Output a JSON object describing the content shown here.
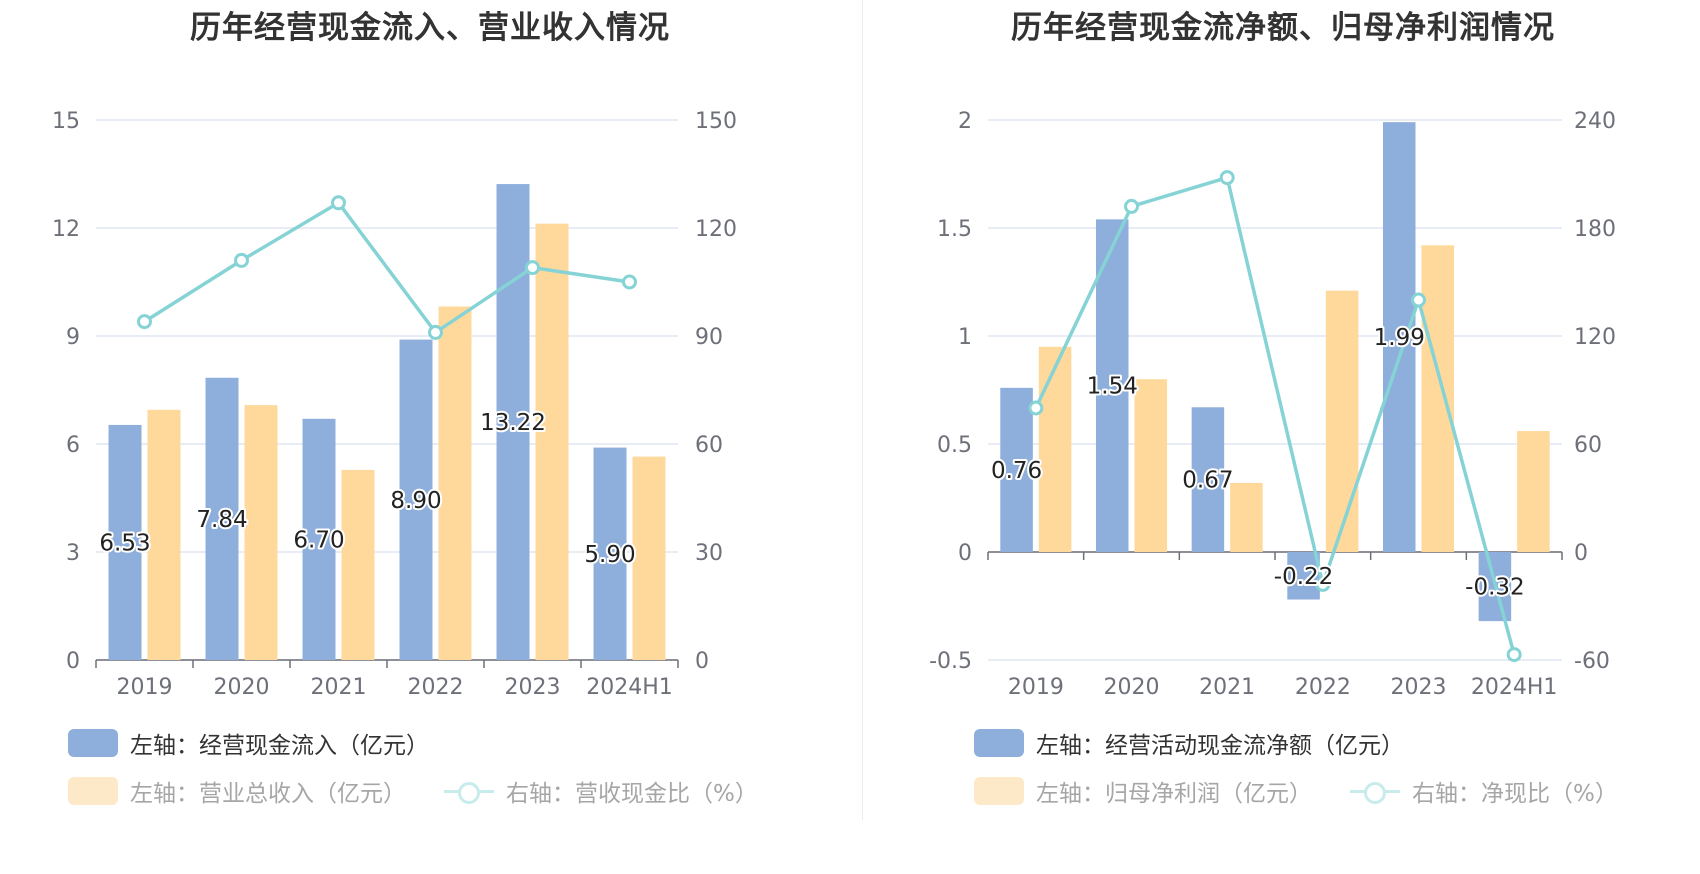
{
  "chart_data": [
    {
      "type": "bar+line",
      "title": "历年经营现金流入、营业收入情况",
      "categories": [
        "2019",
        "2020",
        "2021",
        "2022",
        "2023",
        "2024H1"
      ],
      "left_axis": {
        "min": 0,
        "max": 15,
        "ticks": [
          "0",
          "3",
          "6",
          "9",
          "12",
          "15"
        ]
      },
      "right_axis": {
        "min": 0,
        "max": 150,
        "ticks": [
          "0",
          "30",
          "60",
          "90",
          "120",
          "150"
        ]
      },
      "series": [
        {
          "name": "左轴：经营现金流入（亿元）",
          "kind": "bar",
          "axis": "left",
          "color": "#8eaedb",
          "values": [
            6.53,
            7.84,
            6.7,
            8.9,
            13.22,
            5.9
          ],
          "labels": [
            "6.53",
            "7.84",
            "6.70",
            "8.90",
            "13.22",
            "5.90"
          ]
        },
        {
          "name": "左轴：营业总收入（亿元）",
          "kind": "bar",
          "axis": "left",
          "color": "#fed99b",
          "values": [
            6.95,
            7.08,
            5.28,
            9.82,
            12.12,
            5.65
          ]
        },
        {
          "name": "右轴：营收现金比（%）",
          "kind": "line",
          "axis": "right",
          "color": "#86d3d6",
          "values": [
            94,
            111,
            127,
            91,
            109,
            105
          ]
        }
      ],
      "grid": true,
      "legend_position": "bottom"
    },
    {
      "type": "bar+line",
      "title": "历年经营现金流净额、归母净利润情况",
      "categories": [
        "2019",
        "2020",
        "2021",
        "2022",
        "2023",
        "2024H1"
      ],
      "left_axis": {
        "min": -0.5,
        "max": 2,
        "ticks": [
          "-0.5",
          "0",
          "0.5",
          "1",
          "1.5",
          "2"
        ]
      },
      "right_axis": {
        "min": -60,
        "max": 240,
        "ticks": [
          "-60",
          "0",
          "60",
          "120",
          "180",
          "240"
        ]
      },
      "series": [
        {
          "name": "左轴：经营活动现金流净额（亿元）",
          "kind": "bar",
          "axis": "left",
          "color": "#8eaedb",
          "values": [
            0.76,
            1.54,
            0.67,
            -0.22,
            1.99,
            -0.32
          ],
          "labels": [
            "0.76",
            "1.54",
            "0.67",
            "-0.22",
            "1.99",
            "-0.32"
          ]
        },
        {
          "name": "左轴：归母净利润（亿元）",
          "kind": "bar",
          "axis": "left",
          "color": "#fed99b",
          "values": [
            0.95,
            0.8,
            0.32,
            1.21,
            1.42,
            0.56
          ]
        },
        {
          "name": "右轴：净现比（%）",
          "kind": "line",
          "axis": "right",
          "color": "#86d3d6",
          "values": [
            80,
            192,
            208,
            -18,
            140,
            -57
          ]
        }
      ],
      "grid": true,
      "legend_position": "bottom"
    }
  ]
}
